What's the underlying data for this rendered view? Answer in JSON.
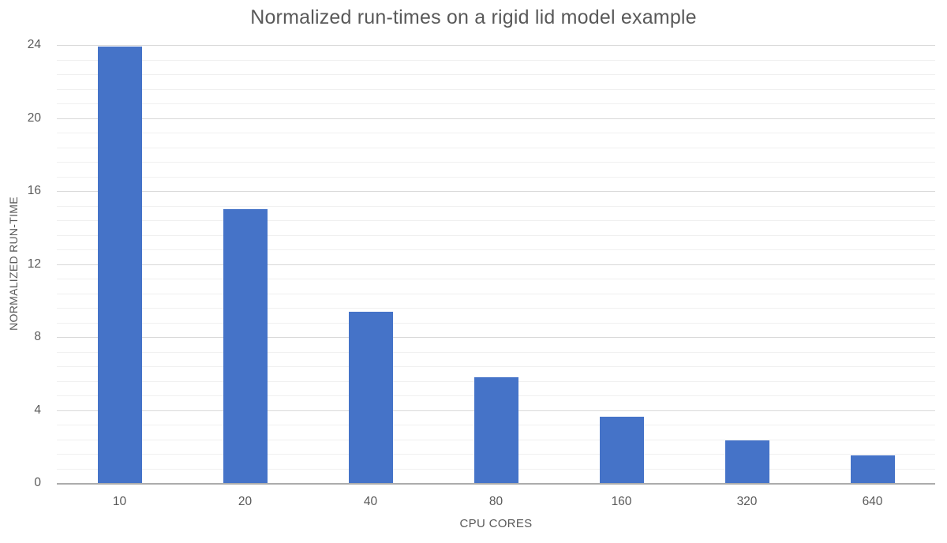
{
  "chart_data": {
    "type": "bar",
    "title": "Normalized run-times on a rigid lid model example",
    "xlabel": "CPU CORES",
    "ylabel": "NORMALIZED RUN-TIME",
    "categories": [
      "10",
      "20",
      "40",
      "80",
      "160",
      "320",
      "640"
    ],
    "series": [
      {
        "name": "Normalized run-time",
        "values": [
          23.9,
          15.0,
          9.4,
          5.8,
          3.65,
          2.35,
          1.5
        ]
      }
    ],
    "ylim": [
      0,
      24
    ],
    "y_ticks": [
      0,
      4,
      8,
      12,
      16,
      20,
      24
    ],
    "y_major_unit": 4,
    "y_minor_unit": 0.8,
    "grid": "horizontal major + faint minor gridlines",
    "legend_position": "none",
    "bar_gap_ratio": 0.352
  },
  "colors": {
    "bar_fill": "#4573C8",
    "title_text": "#595959",
    "axis_text": "#595959",
    "major_gridline": "#D9D9D9",
    "minor_gridline": "#F0F0F0",
    "axis_line": "#ACACAC",
    "background": "#FFFFFF"
  }
}
